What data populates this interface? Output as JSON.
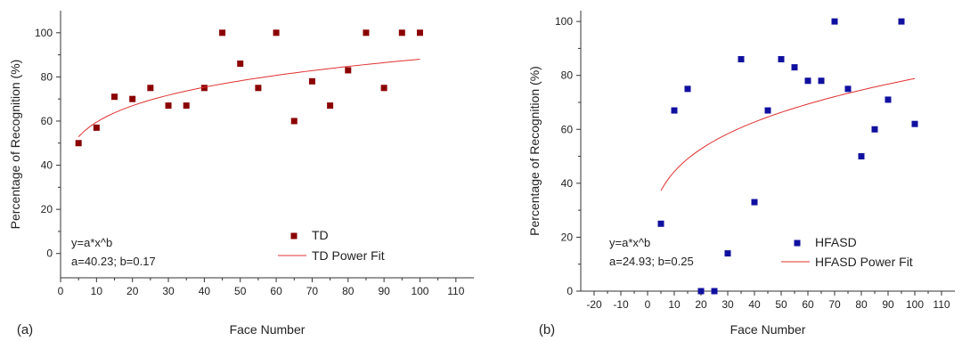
{
  "chart_data": [
    {
      "type": "scatter",
      "panel_label": "(a)",
      "xlabel": "Face Number",
      "ylabel": "Percentage of Recognition (%)",
      "xlim": [
        0,
        115
      ],
      "ylim": [
        -11,
        110
      ],
      "xticks": [
        0,
        10,
        20,
        30,
        40,
        50,
        60,
        70,
        80,
        90,
        100,
        110
      ],
      "yticks": [
        0,
        20,
        40,
        60,
        80,
        100
      ],
      "annotation": [
        "y=a*x^b",
        "a=40.23; b=0.17"
      ],
      "legend_position": "bottom-right",
      "series": [
        {
          "name": "TD",
          "kind": "points",
          "color": "#8b0000",
          "x": [
            5,
            10,
            15,
            20,
            25,
            30,
            35,
            40,
            45,
            50,
            55,
            60,
            65,
            70,
            75,
            80,
            85,
            90,
            95,
            100
          ],
          "y": [
            50,
            57,
            71,
            70,
            75,
            67,
            67,
            75,
            100,
            86,
            75,
            100,
            60,
            78,
            67,
            83,
            100,
            75,
            100,
            100
          ]
        },
        {
          "name": "TD Power Fit",
          "kind": "fit",
          "color": "#e03030",
          "a": 40.23,
          "b": 0.17,
          "x_range": [
            5,
            100
          ]
        }
      ]
    },
    {
      "type": "scatter",
      "panel_label": "(b)",
      "xlabel": "Face Number",
      "ylabel": "Percentage of Recognition (%)",
      "xlim": [
        -25,
        115
      ],
      "ylim": [
        0,
        104
      ],
      "xticks": [
        -20,
        -10,
        0,
        10,
        20,
        30,
        40,
        50,
        60,
        70,
        80,
        90,
        100,
        110
      ],
      "yticks": [
        0,
        20,
        40,
        60,
        80,
        100
      ],
      "annotation": [
        "y=a*x^b",
        "a=24.93; b=0.25"
      ],
      "legend_position": "bottom-right",
      "series": [
        {
          "name": "HFASD",
          "kind": "points",
          "color": "#1010a0",
          "x": [
            5,
            10,
            15,
            20,
            25,
            30,
            35,
            40,
            45,
            50,
            55,
            60,
            65,
            70,
            75,
            80,
            85,
            90,
            95,
            100
          ],
          "y": [
            25,
            67,
            75,
            0,
            0,
            14,
            86,
            33,
            67,
            86,
            83,
            78,
            78,
            100,
            75,
            50,
            60,
            71,
            100,
            62
          ]
        },
        {
          "name": "HFASD Power Fit",
          "kind": "fit",
          "color": "#e03030",
          "a": 24.93,
          "b": 0.25,
          "x_range": [
            5,
            100
          ]
        }
      ]
    }
  ]
}
